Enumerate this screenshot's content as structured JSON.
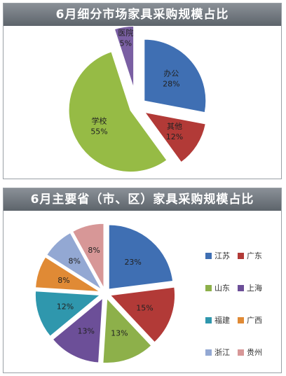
{
  "chart_data": [
    {
      "type": "pie",
      "title": "6月细分市场家具采购规模占比",
      "categories": [
        "办公",
        "其他",
        "学校",
        "医院"
      ],
      "values": [
        28,
        12,
        55,
        5
      ],
      "labels": [
        "28%",
        "12%",
        "55%",
        "5%"
      ],
      "colors": [
        "#3f6fb3",
        "#b23a37",
        "#96bb45",
        "#7a5fa3"
      ],
      "exploded": true
    },
    {
      "type": "pie",
      "title": "6月主要省（市、区）家具采购规模占比",
      "categories": [
        "江苏",
        "广东",
        "山东",
        "上海",
        "福建",
        "广西",
        "浙江",
        "贵州"
      ],
      "values": [
        23,
        15,
        13,
        13,
        12,
        8,
        8,
        8
      ],
      "labels": [
        "23%",
        "15%",
        "13%",
        "13%",
        "12%",
        "8%",
        "8%",
        "8%"
      ],
      "colors": [
        "#3f6fb3",
        "#b23a37",
        "#8db04a",
        "#6c4f98",
        "#2f97ad",
        "#e08a35",
        "#93a8d3",
        "#d79797"
      ],
      "exploded": true,
      "legend_position": "right"
    }
  ]
}
